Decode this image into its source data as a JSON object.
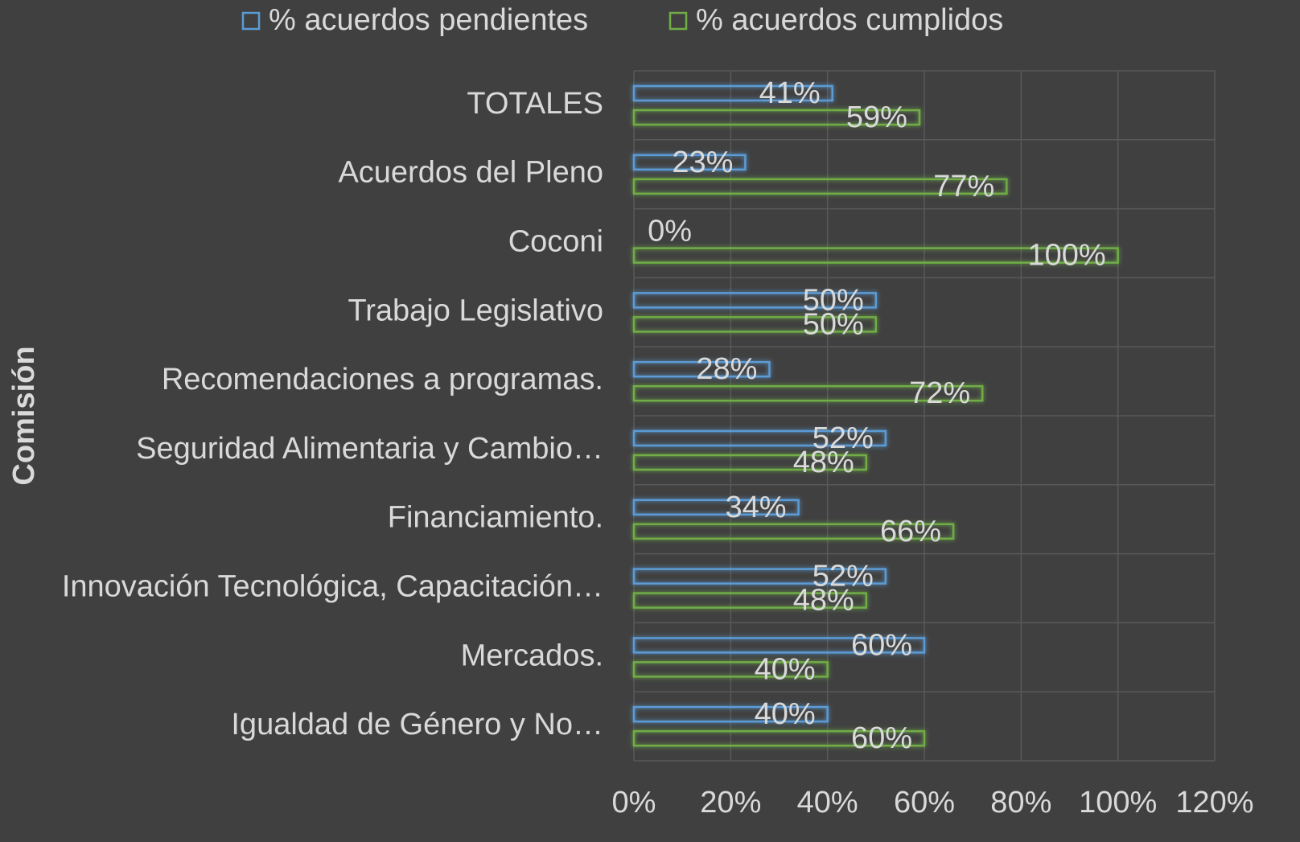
{
  "chart_data": {
    "type": "barh",
    "y_label": "Comisión",
    "categories": [
      "TOTALES",
      "Acuerdos del Pleno",
      "Coconi",
      "Trabajo Legislativo",
      "Recomendaciones a programas.",
      "Seguridad Alimentaria y Cambio…",
      "Financiamiento.",
      "Innovación Tecnológica, Capacitación…",
      "Mercados.",
      "Igualdad de Género y No…"
    ],
    "series": [
      {
        "name": "% acuerdos pendientes",
        "color": "#5b9bd5",
        "values": [
          41,
          23,
          0,
          50,
          28,
          52,
          34,
          52,
          60,
          40
        ],
        "value_labels": [
          "41%",
          "23%",
          "0%",
          "50%",
          "28%",
          "52%",
          "34%",
          "52%",
          "60%",
          "40%"
        ]
      },
      {
        "name": "% acuerdos cumplidos",
        "color": "#70ad47",
        "values": [
          59,
          77,
          100,
          50,
          72,
          48,
          66,
          48,
          40,
          60
        ],
        "value_labels": [
          "59%",
          "77%",
          "100%",
          "50%",
          "72%",
          "48%",
          "66%",
          "48%",
          "40%",
          "60%"
        ]
      }
    ],
    "xlim": [
      0,
      120
    ],
    "xticks": [
      {
        "value": 0,
        "label": "0%"
      },
      {
        "value": 20,
        "label": "20%"
      },
      {
        "value": 40,
        "label": "40%"
      },
      {
        "value": 60,
        "label": "60%"
      },
      {
        "value": 80,
        "label": "80%"
      },
      {
        "value": 100,
        "label": "100%"
      },
      {
        "value": 120,
        "label": "120%"
      }
    ],
    "grid": true,
    "legend": "top"
  }
}
